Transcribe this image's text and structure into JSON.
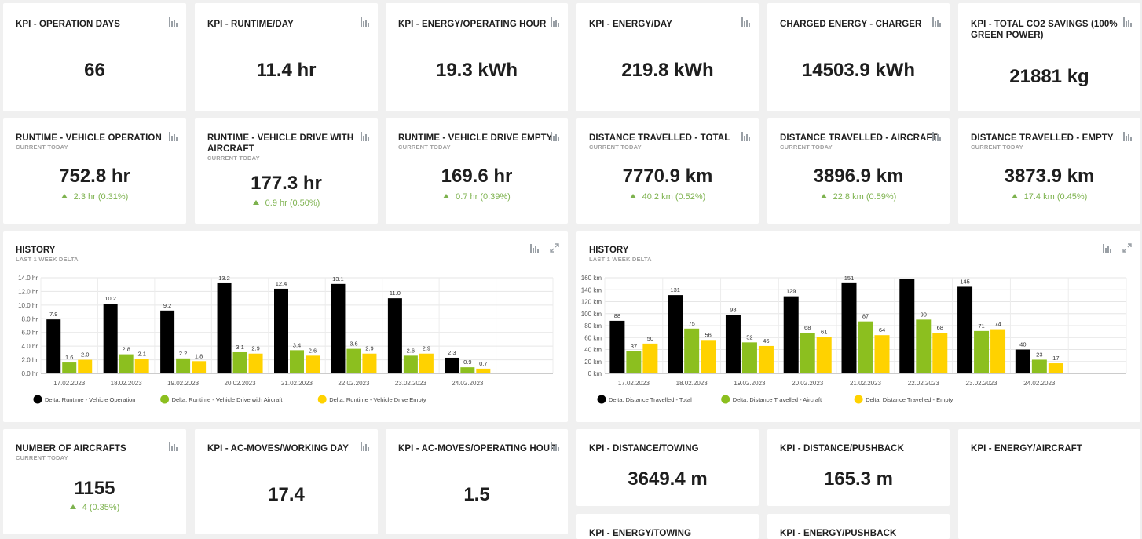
{
  "row1": [
    {
      "title": "KPI - OPERATION DAYS",
      "value": "66"
    },
    {
      "title": "KPI - RUNTIME/DAY",
      "value": "11.4 hr"
    },
    {
      "title": "KPI - ENERGY/OPERATING HOUR",
      "value": "19.3 kWh"
    },
    {
      "title": "KPI - ENERGY/DAY",
      "value": "219.8 kWh"
    },
    {
      "title": "CHARGED ENERGY - CHARGER",
      "value": "14503.9 kWh"
    },
    {
      "title": "KPI - TOTAL CO2 SAVINGS (100% GREEN POWER)",
      "value": "21881 kg"
    }
  ],
  "row2": [
    {
      "title": "RUNTIME - VEHICLE OPERATION",
      "sub": "CURRENT TODAY",
      "value": "752.8 hr",
      "delta": "2.3 hr (0.31%)"
    },
    {
      "title": "RUNTIME - VEHICLE DRIVE WITH AIRCRAFT",
      "sub": "CURRENT TODAY",
      "value": "177.3 hr",
      "delta": "0.9 hr (0.50%)"
    },
    {
      "title": "RUNTIME - VEHICLE DRIVE EMPTY",
      "sub": "CURRENT TODAY",
      "value": "169.6 hr",
      "delta": "0.7 hr (0.39%)"
    },
    {
      "title": "DISTANCE TRAVELLED - TOTAL",
      "sub": "CURRENT TODAY",
      "value": "7770.9 km",
      "delta": "40.2 km (0.52%)"
    },
    {
      "title": "DISTANCE TRAVELLED - AIRCRAFT",
      "sub": "CURRENT TODAY",
      "value": "3896.9 km",
      "delta": "22.8 km (0.59%)"
    },
    {
      "title": "DISTANCE TRAVELLED - EMPTY",
      "sub": "CURRENT TODAY",
      "value": "3873.9 km",
      "delta": "17.4 km (0.45%)"
    }
  ],
  "row3": [
    {
      "title": "NUMBER OF AIRCRAFTS",
      "sub": "CURRENT TODAY",
      "value": "1155",
      "delta": "4 (0.35%)"
    },
    {
      "title": "KPI - AC-MOVES/WORKING DAY",
      "value": "17.4"
    },
    {
      "title": "KPI - AC-MOVES/OPERATING HOUR",
      "value": "1.5"
    },
    {
      "title": "KPI - DISTANCE/TOWING",
      "value": "3649.4 m"
    },
    {
      "title": "KPI - DISTANCE/PUSHBACK",
      "value": "165.3 m"
    },
    {
      "title": "KPI - ENERGY/AIRCRAFT",
      "value": ""
    }
  ],
  "row4": [
    {
      "title": "KPI - ENERGY/TOWING"
    },
    {
      "title": "KPI - ENERGY/PUSHBACK"
    }
  ],
  "colors": {
    "black": "#000000",
    "green": "#8cbf1f",
    "yellow": "#ffd200",
    "delta": "#7db24e"
  },
  "icons": {
    "chart": "bar-chart-icon",
    "expand": "expand-icon",
    "delta": "triangle-up-icon"
  },
  "chart_data": [
    {
      "type": "bar",
      "title": "HISTORY",
      "subtitle": "LAST 1 WEEK  DELTA",
      "categories": [
        "17.02.2023",
        "18.02.2023",
        "19.02.2023",
        "20.02.2023",
        "21.02.2023",
        "22.02.2023",
        "23.02.2023",
        "24.02.2023"
      ],
      "ylim": [
        0,
        14
      ],
      "yticks": [
        0,
        2,
        4,
        6,
        8,
        10,
        12,
        14
      ],
      "ytick_labels": [
        "0.0 hr",
        "2.0 hr",
        "4.0 hr",
        "6.0 hr",
        "8.0 hr",
        "10.0 hr",
        "12.0 hr",
        "14.0 hr"
      ],
      "legend_position": "bottom-left",
      "series": [
        {
          "name": "Delta: Runtime - Vehicle Operation",
          "color": "#000000",
          "values": [
            7.9,
            10.2,
            9.2,
            13.2,
            12.4,
            13.1,
            11.0,
            2.3
          ],
          "labels": [
            "7.9",
            "10.2",
            "9.2",
            "13.2",
            "12.4",
            "13.1",
            "11.0",
            "2.3"
          ]
        },
        {
          "name": "Delta: Runtime - Vehicle Drive with Aircraft",
          "color": "#8cbf1f",
          "values": [
            1.6,
            2.8,
            2.2,
            3.1,
            3.4,
            3.6,
            2.6,
            0.9
          ],
          "labels": [
            "1.6",
            "2.8",
            "2.2",
            "3.1",
            "3.4",
            "3.6",
            "2.6",
            "0.9"
          ]
        },
        {
          "name": "Delta: Runtime - Vehicle Drive Empty",
          "color": "#ffd200",
          "values": [
            2.0,
            2.1,
            1.8,
            2.9,
            2.6,
            2.9,
            2.9,
            0.7
          ],
          "labels": [
            "2.0",
            "2.1",
            "1.8",
            "2.9",
            "2.6",
            "2.9",
            "2.9",
            "0.7"
          ]
        }
      ]
    },
    {
      "type": "bar",
      "title": "HISTORY",
      "subtitle": "LAST 1 WEEK  DELTA",
      "categories": [
        "17.02.2023",
        "18.02.2023",
        "19.02.2023",
        "20.02.2023",
        "21.02.2023",
        "22.02.2023",
        "23.02.2023",
        "24.02.2023"
      ],
      "ylim": [
        0,
        160
      ],
      "yticks": [
        0,
        20,
        40,
        60,
        80,
        100,
        120,
        140,
        160
      ],
      "ytick_labels": [
        "0 km",
        "20 km",
        "40 km",
        "60 km",
        "80 km",
        "100 km",
        "120 km",
        "140 km",
        "160 km"
      ],
      "legend_position": "bottom-left",
      "series": [
        {
          "name": "Delta: Distance Travelled - Total",
          "color": "#000000",
          "values": [
            88,
            131,
            98,
            129,
            151,
            158,
            145,
            40
          ],
          "labels": [
            "88",
            "131",
            "98",
            "129",
            "151",
            "",
            "145",
            "40"
          ]
        },
        {
          "name": "Delta: Distance Travelled - Aircraft",
          "color": "#8cbf1f",
          "values": [
            37,
            75,
            52,
            68,
            87,
            90,
            71,
            23
          ],
          "labels": [
            "37",
            "75",
            "52",
            "68",
            "87",
            "90",
            "71",
            "23"
          ]
        },
        {
          "name": "Delta: Distance Travelled - Empty",
          "color": "#ffd200",
          "values": [
            50,
            56,
            46,
            61,
            64,
            68,
            74,
            17
          ],
          "labels": [
            "50",
            "56",
            "46",
            "61",
            "64",
            "68",
            "74",
            "17"
          ]
        }
      ]
    }
  ]
}
